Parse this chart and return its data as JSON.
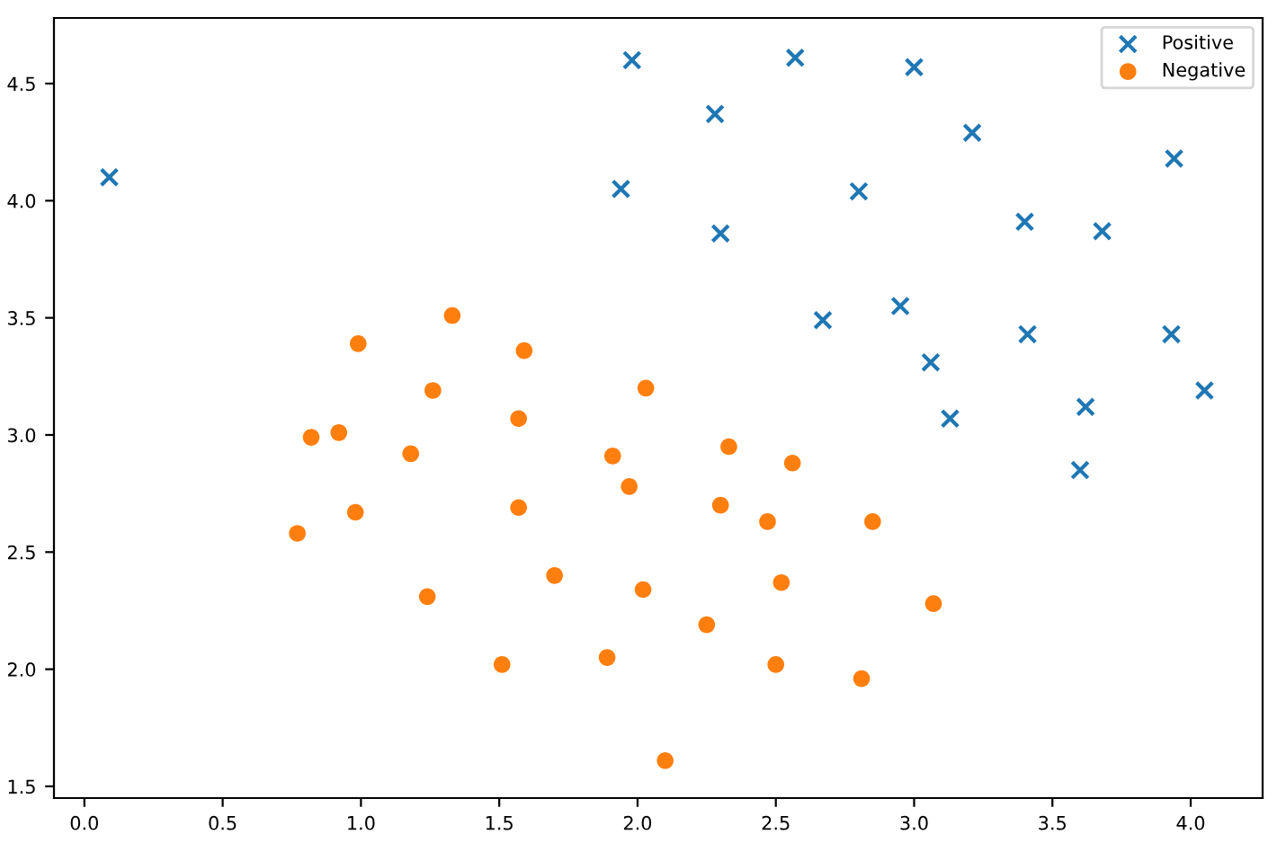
{
  "chart_data": {
    "type": "scatter",
    "xlim": [
      -0.11,
      4.26
    ],
    "ylim": [
      1.45,
      4.78
    ],
    "xticks": [
      {
        "value": 0,
        "label": "0.0"
      },
      0.5,
      {
        "value": 1,
        "label": "1.0"
      },
      1.5,
      {
        "value": 2,
        "label": "2.0"
      },
      2.5,
      {
        "value": 3,
        "label": "3.0"
      },
      3.5,
      {
        "value": 4,
        "label": "4.0"
      }
    ],
    "yticks": [
      1.5,
      {
        "value": 2,
        "label": "2.0"
      },
      2.5,
      {
        "value": 3,
        "label": "3.0"
      },
      3.5,
      {
        "value": 4,
        "label": "4.0"
      },
      4.5
    ],
    "grid": false,
    "legend": "top right",
    "series": [
      {
        "name": "Positive",
        "color": "#1f77b4",
        "marker": "cross",
        "x": [
          0.09,
          1.98,
          2.57,
          3.0,
          2.28,
          3.21,
          1.94,
          2.8,
          3.94,
          3.4,
          2.3,
          3.68,
          2.95,
          2.67,
          3.41,
          3.93,
          3.06,
          3.13,
          4.05,
          3.62,
          3.6
        ],
        "values": [
          4.1,
          4.6,
          4.61,
          4.57,
          4.37,
          4.29,
          4.05,
          4.04,
          4.18,
          3.91,
          3.86,
          3.87,
          3.55,
          3.49,
          3.43,
          3.43,
          3.31,
          3.07,
          3.19,
          3.12,
          2.85
        ]
      },
      {
        "name": "Negative",
        "color": "#ff7f0e",
        "marker": "circle",
        "x": [
          0.77,
          0.82,
          0.92,
          0.99,
          0.98,
          1.18,
          1.33,
          1.26,
          1.24,
          1.59,
          1.57,
          1.57,
          1.51,
          1.7,
          1.89,
          1.91,
          1.97,
          2.03,
          2.02,
          2.1,
          2.25,
          2.33,
          2.3,
          2.56,
          2.47,
          2.52,
          2.5,
          2.85,
          2.81,
          3.07
        ],
        "values": [
          2.58,
          2.99,
          3.01,
          3.39,
          2.67,
          2.92,
          3.51,
          3.19,
          2.31,
          3.36,
          3.07,
          2.69,
          2.02,
          2.4,
          2.05,
          2.91,
          2.78,
          3.2,
          2.34,
          1.61,
          2.19,
          2.95,
          2.7,
          2.88,
          2.63,
          2.37,
          2.02,
          2.63,
          1.96,
          2.28
        ]
      }
    ]
  }
}
